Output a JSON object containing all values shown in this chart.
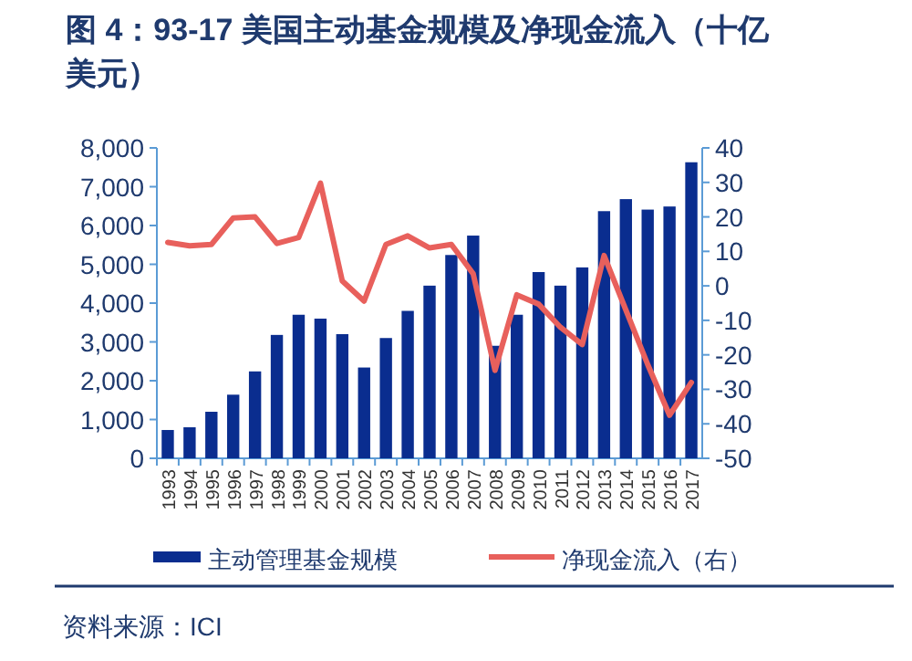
{
  "chart_data": {
    "type": "bar",
    "title": "图 4：93-17 美国主动基金规模及净现金流入（十亿美元）",
    "categories": [
      "1993",
      "1994",
      "1995",
      "1996",
      "1997",
      "1998",
      "1999",
      "2000",
      "2001",
      "2002",
      "2003",
      "2004",
      "2005",
      "2006",
      "2007",
      "2008",
      "2009",
      "2010",
      "2011",
      "2012",
      "2013",
      "2014",
      "2015",
      "2016",
      "2017"
    ],
    "series": [
      {
        "name": "主动管理基金规模",
        "color": "#0a2d8f",
        "values": [
          730,
          800,
          1200,
          1640,
          2240,
          3180,
          3700,
          3600,
          3200,
          2340,
          3100,
          3800,
          4450,
          5240,
          5740,
          2900,
          3700,
          4800,
          4450,
          4920,
          6370,
          6680,
          6410,
          6490,
          7630
        ]
      },
      {
        "name": "净现金流入（右）",
        "type": "line",
        "axis": "y2",
        "color": "#e8605c",
        "values": [
          12.6,
          11.6,
          12,
          19.7,
          20,
          12.3,
          14,
          29.8,
          1.4,
          -4.4,
          12,
          14.5,
          11,
          12,
          3.5,
          -24.5,
          -2.6,
          -5.3,
          -12,
          -17,
          8.8,
          -7,
          -22.8,
          -37.5,
          -28
        ]
      }
    ],
    "ylim": [
      0,
      8000
    ],
    "yticks": [
      0,
      {
        "value": 1000,
        "label": "1,000"
      },
      {
        "value": 2000,
        "label": "2,000"
      },
      {
        "value": 3000,
        "label": "3,000"
      },
      {
        "value": 4000,
        "label": "4,000"
      },
      {
        "value": 5000,
        "label": "5,000"
      },
      {
        "value": 6000,
        "label": "6,000"
      },
      {
        "value": 7000,
        "label": "7,000"
      },
      {
        "value": 8000,
        "label": "8,000"
      }
    ],
    "y2lim": [
      -50,
      40
    ],
    "y2ticks": [
      -50,
      -40,
      -30,
      -20,
      -10,
      0,
      10,
      20,
      30,
      40
    ],
    "legend": "bottom",
    "annotations": [
      "资料来源：ICI"
    ]
  }
}
